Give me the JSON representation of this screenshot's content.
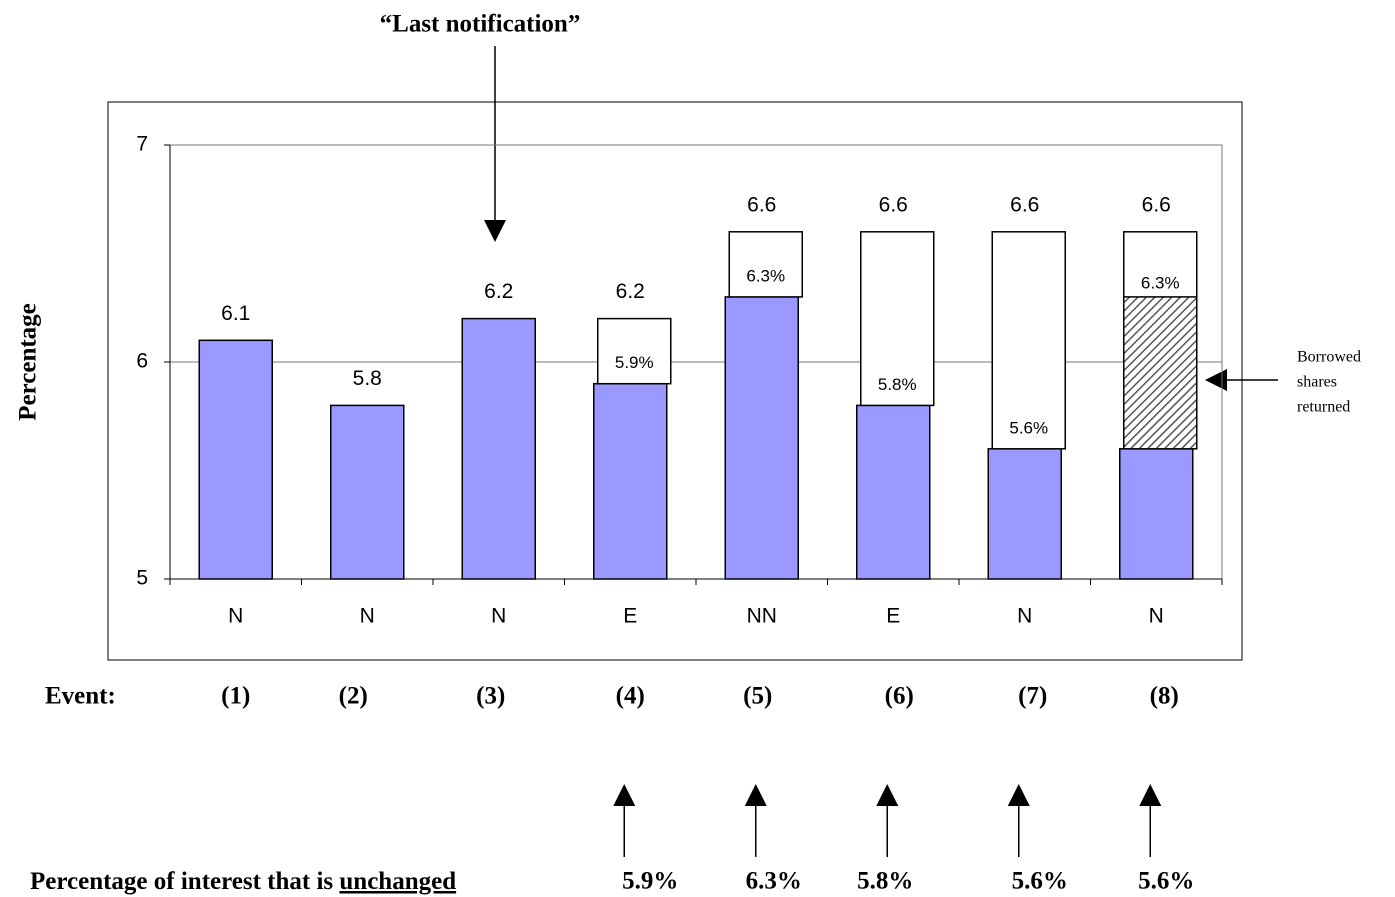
{
  "chart_data": {
    "type": "bar",
    "y_label": "Percentage",
    "annotation_top": "“Last notification”",
    "annotation_side": [
      "Borrowed",
      "shares",
      "returned"
    ],
    "categories": [
      "N",
      "N",
      "N",
      "E",
      "NN",
      "E",
      "N",
      "N"
    ],
    "events_label": "Event:",
    "events": [
      "(1)",
      "(2)",
      "(3)",
      "(4)",
      "(5)",
      "(6)",
      "(7)",
      "(8)"
    ],
    "values": [
      6.1,
      5.8,
      6.2,
      6.2,
      6.6,
      6.6,
      6.6,
      6.6
    ],
    "color": "#9999ff",
    "unchanged": [
      null,
      null,
      null,
      5.9,
      6.3,
      5.8,
      5.6,
      5.6
    ],
    "unchanged_labels": [
      null,
      null,
      null,
      "5.9%",
      "6.3%",
      "5.8%",
      "5.6%",
      "5.6%"
    ],
    "returned": [
      null,
      null,
      null,
      null,
      null,
      null,
      null,
      6.3
    ],
    "returned_labels": [
      null,
      null,
      null,
      null,
      null,
      null,
      null,
      "6.3%"
    ],
    "bottom_label": "Percentage of interest that is",
    "bottom_label_emph": "unchanged",
    "ylim": [
      5,
      7
    ],
    "yticks": [
      5,
      6,
      7
    ],
    "grid": true
  }
}
